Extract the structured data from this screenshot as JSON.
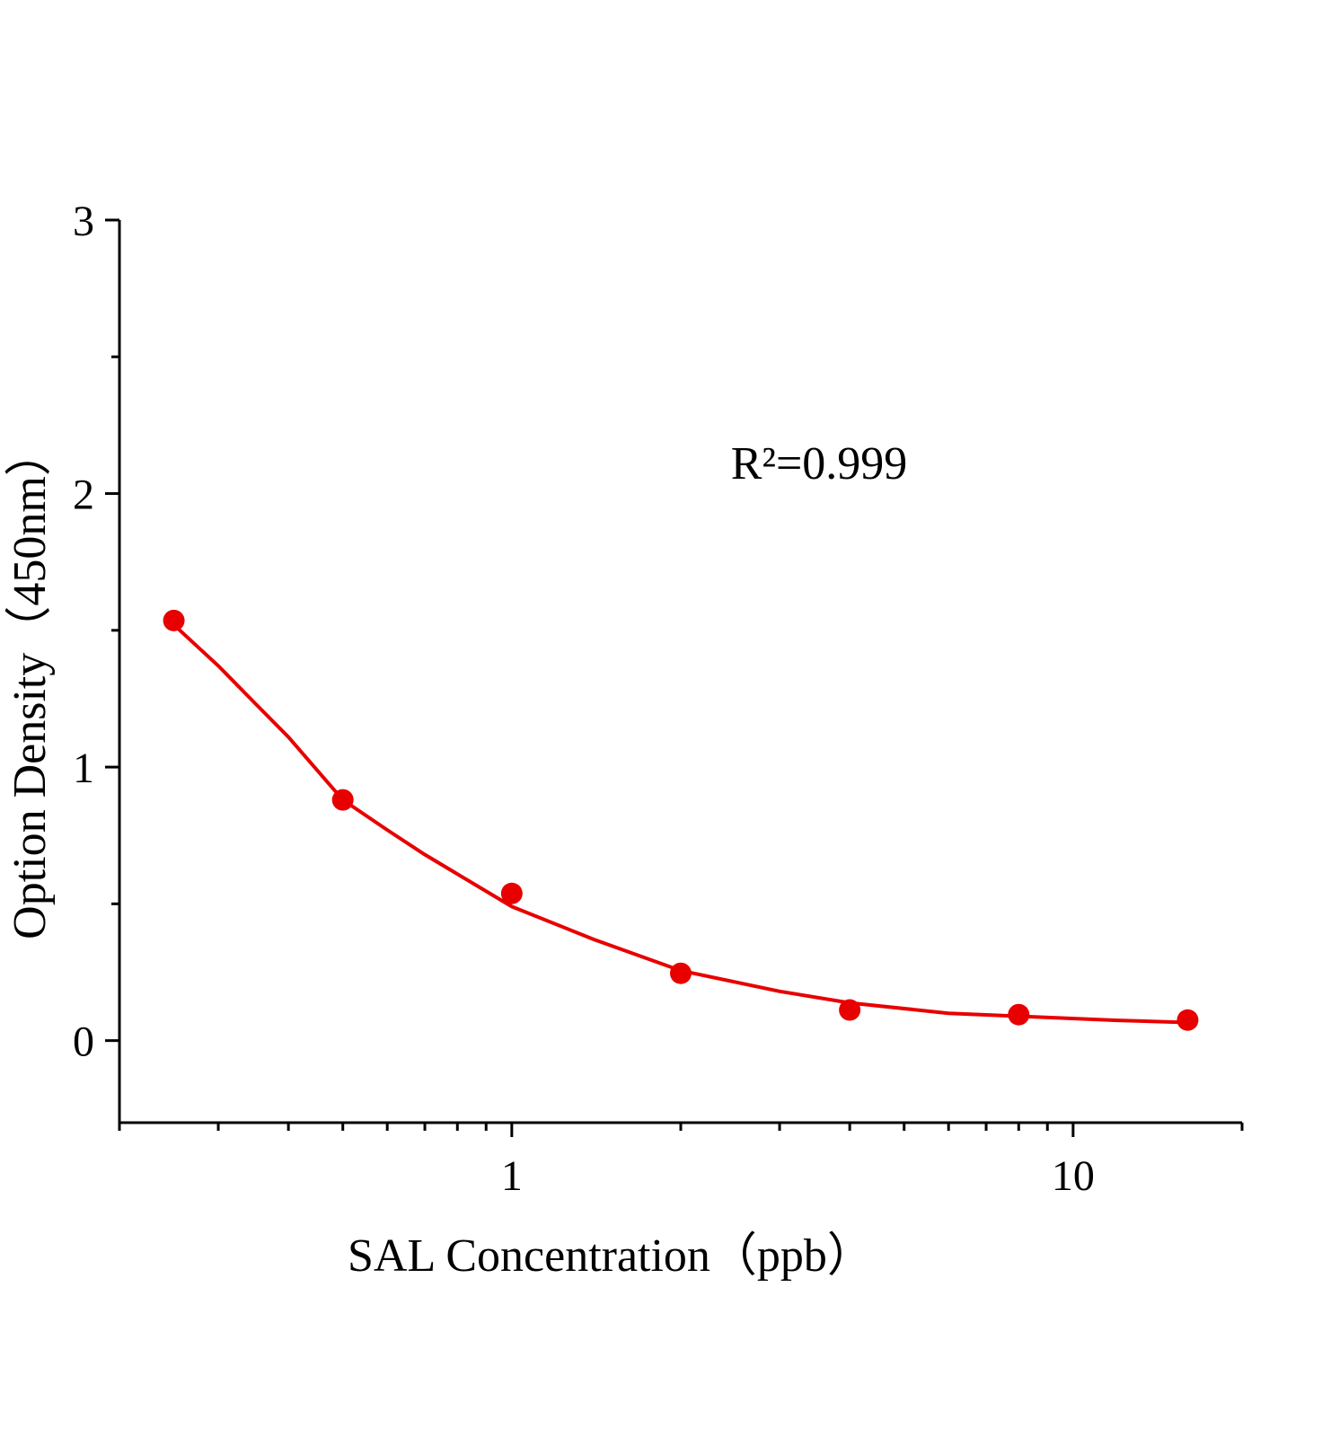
{
  "chart_data": {
    "type": "scatter",
    "annotation": "R²=0.999",
    "xlabel": "SAL  Concentration（ppb）",
    "ylabel": "Option Density（450nm）",
    "x": [
      0.25,
      0.5,
      1,
      2,
      4,
      8,
      16
    ],
    "values": [
      1.536,
      0.88,
      0.538,
      0.246,
      0.112,
      0.095,
      0.075
    ],
    "color": "#e80000",
    "fit": {
      "x": [
        0.25,
        0.3,
        0.35,
        0.4,
        0.5,
        0.6,
        0.7,
        1,
        1.4,
        2,
        3,
        4,
        6,
        8,
        12,
        16
      ],
      "values": [
        1.52,
        1.37,
        1.23,
        1.11,
        0.88,
        0.77,
        0.68,
        0.49,
        0.37,
        0.256,
        0.18,
        0.138,
        0.1,
        0.089,
        0.074,
        0.066
      ]
    },
    "xscale": "log",
    "xlim": [
      0.2,
      20
    ],
    "xticks": [
      1,
      10
    ],
    "xminorticks": [
      0.2,
      0.3,
      0.4,
      0.5,
      0.6,
      0.7,
      0.8,
      0.9,
      2,
      3,
      4,
      5,
      6,
      7,
      8,
      9,
      20
    ],
    "ylim": [
      -0.3,
      3
    ],
    "yticks": [
      0,
      1,
      2,
      3
    ],
    "yminorticks": [
      0.5,
      1.5,
      2.5
    ]
  }
}
